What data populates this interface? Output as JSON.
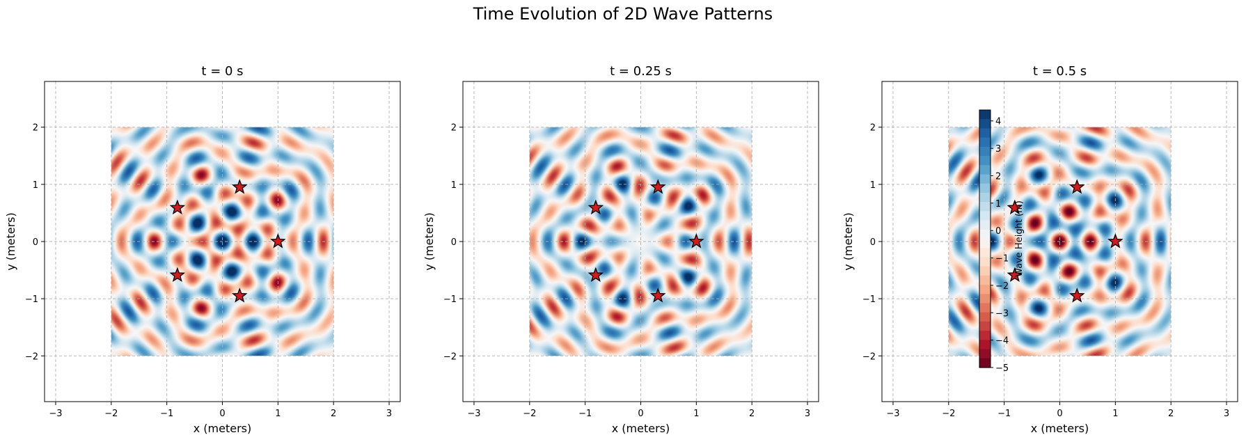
{
  "figure": {
    "title": "Time Evolution of 2D Wave Patterns"
  },
  "chart_data": {
    "type": "heatmap",
    "colormap": "RdBu",
    "x_range": [
      -2,
      2
    ],
    "y_range": [
      -2,
      2
    ],
    "xlim": [
      -3.2,
      3.2
    ],
    "ylim": [
      -2.8,
      2.8
    ],
    "x_ticks": [
      -3,
      -2,
      -1,
      0,
      1,
      2,
      3
    ],
    "y_ticks": [
      -2,
      -1,
      0,
      1,
      2
    ],
    "grid": true,
    "xlabel": "x (meters)",
    "ylabel": "y (meters)",
    "sources": [
      {
        "x": 1.0,
        "y": 0.0
      },
      {
        "x": 0.31,
        "y": 0.95
      },
      {
        "x": -0.81,
        "y": 0.59
      },
      {
        "x": -0.81,
        "y": -0.59
      },
      {
        "x": 0.31,
        "y": -0.95
      }
    ],
    "panels": [
      {
        "title": "t = 0 s",
        "t": 0
      },
      {
        "title": "t = 0.25 s",
        "t": 0.25
      },
      {
        "title": "t = 0.5 s",
        "t": 0.5
      }
    ],
    "colorbar": {
      "label": "Wave Height (m)",
      "range": [
        -5,
        4.4
      ],
      "ticks": [
        4,
        3,
        2,
        1,
        0,
        -1,
        -2,
        -3,
        -4,
        -5
      ]
    }
  },
  "colors": {
    "star_fill": "#d7191c",
    "star_edge": "#000000",
    "grid": "#b0b0b0"
  }
}
